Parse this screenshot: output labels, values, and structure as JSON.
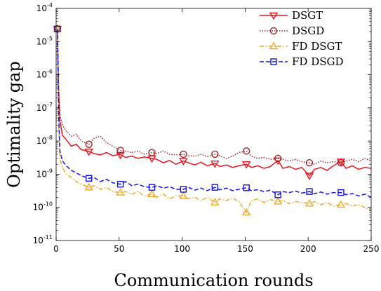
{
  "chart_data": {
    "type": "line",
    "xlabel": "Communication rounds",
    "ylabel": "Optimality gap",
    "xlim": [
      0,
      250
    ],
    "ylim": [
      1e-11,
      0.0001
    ],
    "yscale": "log",
    "grid": false,
    "legend_position": "top-right",
    "x_ticks": [
      {
        "value": 0,
        "label": "0"
      },
      {
        "value": 50,
        "label": "50"
      },
      {
        "value": 100,
        "label": "100"
      },
      {
        "value": 150,
        "label": "150"
      },
      {
        "value": 200,
        "label": "200"
      },
      {
        "value": 250,
        "label": "250"
      }
    ],
    "y_ticks": [
      {
        "exp": -11,
        "base": "10",
        "sup": "-11"
      },
      {
        "exp": -10,
        "base": "10",
        "sup": "-10"
      },
      {
        "exp": -9,
        "base": "10",
        "sup": "-9"
      },
      {
        "exp": -8,
        "base": "10",
        "sup": "-8"
      },
      {
        "exp": -7,
        "base": "10",
        "sup": "-7"
      },
      {
        "exp": -6,
        "base": "10",
        "sup": "-6"
      },
      {
        "exp": -5,
        "base": "10",
        "sup": "-5"
      },
      {
        "exp": -4,
        "base": "10",
        "sup": "-4"
      }
    ],
    "series": [
      {
        "name": "DSGT",
        "color": "#e8141c",
        "dash": "solid",
        "marker": "triangle-down",
        "marker_x": [
          1,
          26,
          51,
          76,
          101,
          126,
          151,
          176,
          201,
          226
        ],
        "points": [
          [
            1,
            2.4e-05
          ],
          [
            2,
            3e-07
          ],
          [
            3,
            4e-08
          ],
          [
            5,
            1.5e-08
          ],
          [
            8,
            1.1e-08
          ],
          [
            12,
            7e-09
          ],
          [
            16,
            8e-09
          ],
          [
            20,
            5.5e-09
          ],
          [
            25,
            5e-09
          ],
          [
            30,
            4.2e-09
          ],
          [
            35,
            3.8e-09
          ],
          [
            40,
            4.5e-09
          ],
          [
            45,
            3.6e-09
          ],
          [
            50,
            4e-09
          ],
          [
            55,
            3.2e-09
          ],
          [
            60,
            3.5e-09
          ],
          [
            65,
            3e-09
          ],
          [
            70,
            3.3e-09
          ],
          [
            76,
            3e-09
          ],
          [
            80,
            2.8e-09
          ],
          [
            85,
            2.2e-09
          ],
          [
            90,
            2.6e-09
          ],
          [
            95,
            2e-09
          ],
          [
            101,
            2.5e-09
          ],
          [
            105,
            2.2e-09
          ],
          [
            110,
            1.9e-09
          ],
          [
            115,
            2.3e-09
          ],
          [
            120,
            1.8e-09
          ],
          [
            126,
            2.1e-09
          ],
          [
            130,
            1.7e-09
          ],
          [
            135,
            1.9e-09
          ],
          [
            140,
            1.6e-09
          ],
          [
            145,
            1.8e-09
          ],
          [
            151,
            2e-09
          ],
          [
            155,
            1.6e-09
          ],
          [
            160,
            1.8e-09
          ],
          [
            165,
            1.5e-09
          ],
          [
            170,
            1.7e-09
          ],
          [
            176,
            2.6e-09
          ],
          [
            180,
            1.5e-09
          ],
          [
            185,
            1.7e-09
          ],
          [
            190,
            1.4e-09
          ],
          [
            195,
            1.6e-09
          ],
          [
            201,
            9e-10
          ],
          [
            205,
            1.4e-09
          ],
          [
            210,
            1.6e-09
          ],
          [
            215,
            1.3e-09
          ],
          [
            220,
            1.8e-09
          ],
          [
            226,
            2.4e-09
          ],
          [
            230,
            1.5e-09
          ],
          [
            235,
            1.8e-09
          ],
          [
            240,
            1.4e-09
          ],
          [
            245,
            1.6e-09
          ],
          [
            250,
            1.5e-09
          ]
        ]
      },
      {
        "name": "DSGD",
        "color": "#a0282c",
        "dash": "dotted",
        "marker": "circle",
        "marker_x": [
          1,
          26,
          51,
          76,
          101,
          126,
          151,
          176,
          201,
          226
        ],
        "points": [
          [
            1,
            2.4e-05
          ],
          [
            2,
            4e-07
          ],
          [
            3,
            6e-08
          ],
          [
            5,
            3e-08
          ],
          [
            8,
            2e-08
          ],
          [
            12,
            1.4e-08
          ],
          [
            16,
            1.6e-08
          ],
          [
            20,
            1e-08
          ],
          [
            26,
            8e-09
          ],
          [
            30,
            1.2e-08
          ],
          [
            35,
            1.4e-08
          ],
          [
            40,
            9e-09
          ],
          [
            45,
            7e-09
          ],
          [
            51,
            5.2e-09
          ],
          [
            55,
            5e-09
          ],
          [
            60,
            4.5e-09
          ],
          [
            65,
            5e-09
          ],
          [
            70,
            4e-09
          ],
          [
            76,
            4.5e-09
          ],
          [
            80,
            4.2e-09
          ],
          [
            85,
            5e-09
          ],
          [
            90,
            4e-09
          ],
          [
            95,
            3.8e-09
          ],
          [
            101,
            4e-09
          ],
          [
            105,
            3.6e-09
          ],
          [
            110,
            3.5e-09
          ],
          [
            115,
            4e-09
          ],
          [
            120,
            3.4e-09
          ],
          [
            126,
            4e-09
          ],
          [
            130,
            3.6e-09
          ],
          [
            135,
            3e-09
          ],
          [
            140,
            3.5e-09
          ],
          [
            145,
            4.5e-09
          ],
          [
            151,
            5e-09
          ],
          [
            155,
            3.5e-09
          ],
          [
            160,
            3e-09
          ],
          [
            165,
            3.2e-09
          ],
          [
            170,
            2.8e-09
          ],
          [
            176,
            3e-09
          ],
          [
            180,
            2.8e-09
          ],
          [
            185,
            2.5e-09
          ],
          [
            190,
            2.8e-09
          ],
          [
            195,
            2.4e-09
          ],
          [
            201,
            2.2e-09
          ],
          [
            205,
            2e-09
          ],
          [
            210,
            2.5e-09
          ],
          [
            215,
            2.2e-09
          ],
          [
            220,
            2.4e-09
          ],
          [
            226,
            2.2e-09
          ],
          [
            230,
            2.5e-09
          ],
          [
            235,
            2.8e-09
          ],
          [
            240,
            2.4e-09
          ],
          [
            245,
            3e-09
          ],
          [
            250,
            2.5e-09
          ]
        ]
      },
      {
        "name": "FD DSGT",
        "color": "#f5a623",
        "dash": "dashdot",
        "marker": "triangle-up",
        "marker_x": [
          1,
          26,
          51,
          76,
          101,
          126,
          151,
          176,
          201,
          226
        ],
        "points": [
          [
            1,
            2.4e-05
          ],
          [
            2,
            4e-08
          ],
          [
            3,
            3e-09
          ],
          [
            5,
            1.6e-09
          ],
          [
            8,
            1e-09
          ],
          [
            12,
            8e-10
          ],
          [
            16,
            6e-10
          ],
          [
            20,
            5e-10
          ],
          [
            26,
            4e-10
          ],
          [
            30,
            4.5e-10
          ],
          [
            35,
            3.5e-10
          ],
          [
            40,
            4e-10
          ],
          [
            45,
            3e-10
          ],
          [
            51,
            2.8e-10
          ],
          [
            55,
            3e-10
          ],
          [
            60,
            2.5e-10
          ],
          [
            65,
            3e-10
          ],
          [
            70,
            2.2e-10
          ],
          [
            76,
            2.5e-10
          ],
          [
            80,
            2e-10
          ],
          [
            85,
            2.5e-10
          ],
          [
            90,
            1.8e-10
          ],
          [
            95,
            2.2e-10
          ],
          [
            101,
            2.2e-10
          ],
          [
            105,
            1.8e-10
          ],
          [
            110,
            2e-10
          ],
          [
            115,
            1.6e-10
          ],
          [
            120,
            2e-10
          ],
          [
            126,
            1.4e-10
          ],
          [
            130,
            1.8e-10
          ],
          [
            135,
            1.6e-10
          ],
          [
            140,
            1.9e-10
          ],
          [
            145,
            1.5e-10
          ],
          [
            151,
            7e-11
          ],
          [
            155,
            1.6e-10
          ],
          [
            160,
            1.8e-10
          ],
          [
            165,
            1.4e-10
          ],
          [
            170,
            1.7e-10
          ],
          [
            176,
            1.5e-10
          ],
          [
            180,
            1.6e-10
          ],
          [
            185,
            1.3e-10
          ],
          [
            190,
            1.5e-10
          ],
          [
            195,
            1.4e-10
          ],
          [
            201,
            1.3e-10
          ],
          [
            205,
            1.5e-10
          ],
          [
            210,
            1.2e-10
          ],
          [
            215,
            1.4e-10
          ],
          [
            220,
            1.1e-10
          ],
          [
            226,
            1.2e-10
          ],
          [
            230,
            1.3e-10
          ],
          [
            235,
            1.1e-10
          ],
          [
            240,
            1.2e-10
          ],
          [
            245,
            1e-10
          ],
          [
            250,
            8e-11
          ]
        ]
      },
      {
        "name": "FD DSGD",
        "color": "#1414e8",
        "dash": "dashed",
        "marker": "square",
        "marker_x": [
          1,
          26,
          51,
          76,
          101,
          126,
          151,
          176,
          201,
          226
        ],
        "points": [
          [
            1,
            2.4e-05
          ],
          [
            2,
            6e-08
          ],
          [
            3,
            5e-09
          ],
          [
            5,
            2.5e-09
          ],
          [
            8,
            1.8e-09
          ],
          [
            12,
            1.3e-09
          ],
          [
            16,
            1.1e-09
          ],
          [
            20,
            9e-10
          ],
          [
            26,
            7.5e-10
          ],
          [
            30,
            8e-10
          ],
          [
            35,
            6e-10
          ],
          [
            40,
            7e-10
          ],
          [
            45,
            5.5e-10
          ],
          [
            51,
            5e-10
          ],
          [
            55,
            6e-10
          ],
          [
            60,
            4.5e-10
          ],
          [
            65,
            5e-10
          ],
          [
            70,
            4.2e-10
          ],
          [
            76,
            4e-10
          ],
          [
            80,
            4.5e-10
          ],
          [
            85,
            3.8e-10
          ],
          [
            90,
            4.2e-10
          ],
          [
            95,
            3.5e-10
          ],
          [
            101,
            3.5e-10
          ],
          [
            105,
            4e-10
          ],
          [
            110,
            3.3e-10
          ],
          [
            115,
            3.8e-10
          ],
          [
            120,
            3.2e-10
          ],
          [
            126,
            4e-10
          ],
          [
            130,
            3.4e-10
          ],
          [
            135,
            3.8e-10
          ],
          [
            140,
            3.2e-10
          ],
          [
            145,
            3.5e-10
          ],
          [
            151,
            3.9e-10
          ],
          [
            155,
            3.2e-10
          ],
          [
            160,
            3.4e-10
          ],
          [
            165,
            3e-10
          ],
          [
            170,
            3.3e-10
          ],
          [
            176,
            2.4e-10
          ],
          [
            180,
            3e-10
          ],
          [
            185,
            2.8e-10
          ],
          [
            190,
            3.1e-10
          ],
          [
            195,
            2.7e-10
          ],
          [
            201,
            3e-10
          ],
          [
            205,
            2.6e-10
          ],
          [
            210,
            2.9e-10
          ],
          [
            215,
            2.5e-10
          ],
          [
            220,
            2.8e-10
          ],
          [
            226,
            2.8e-10
          ],
          [
            230,
            2.4e-10
          ],
          [
            235,
            2.6e-10
          ],
          [
            240,
            2.2e-10
          ],
          [
            245,
            2.5e-10
          ],
          [
            250,
            2e-10
          ]
        ]
      }
    ]
  }
}
